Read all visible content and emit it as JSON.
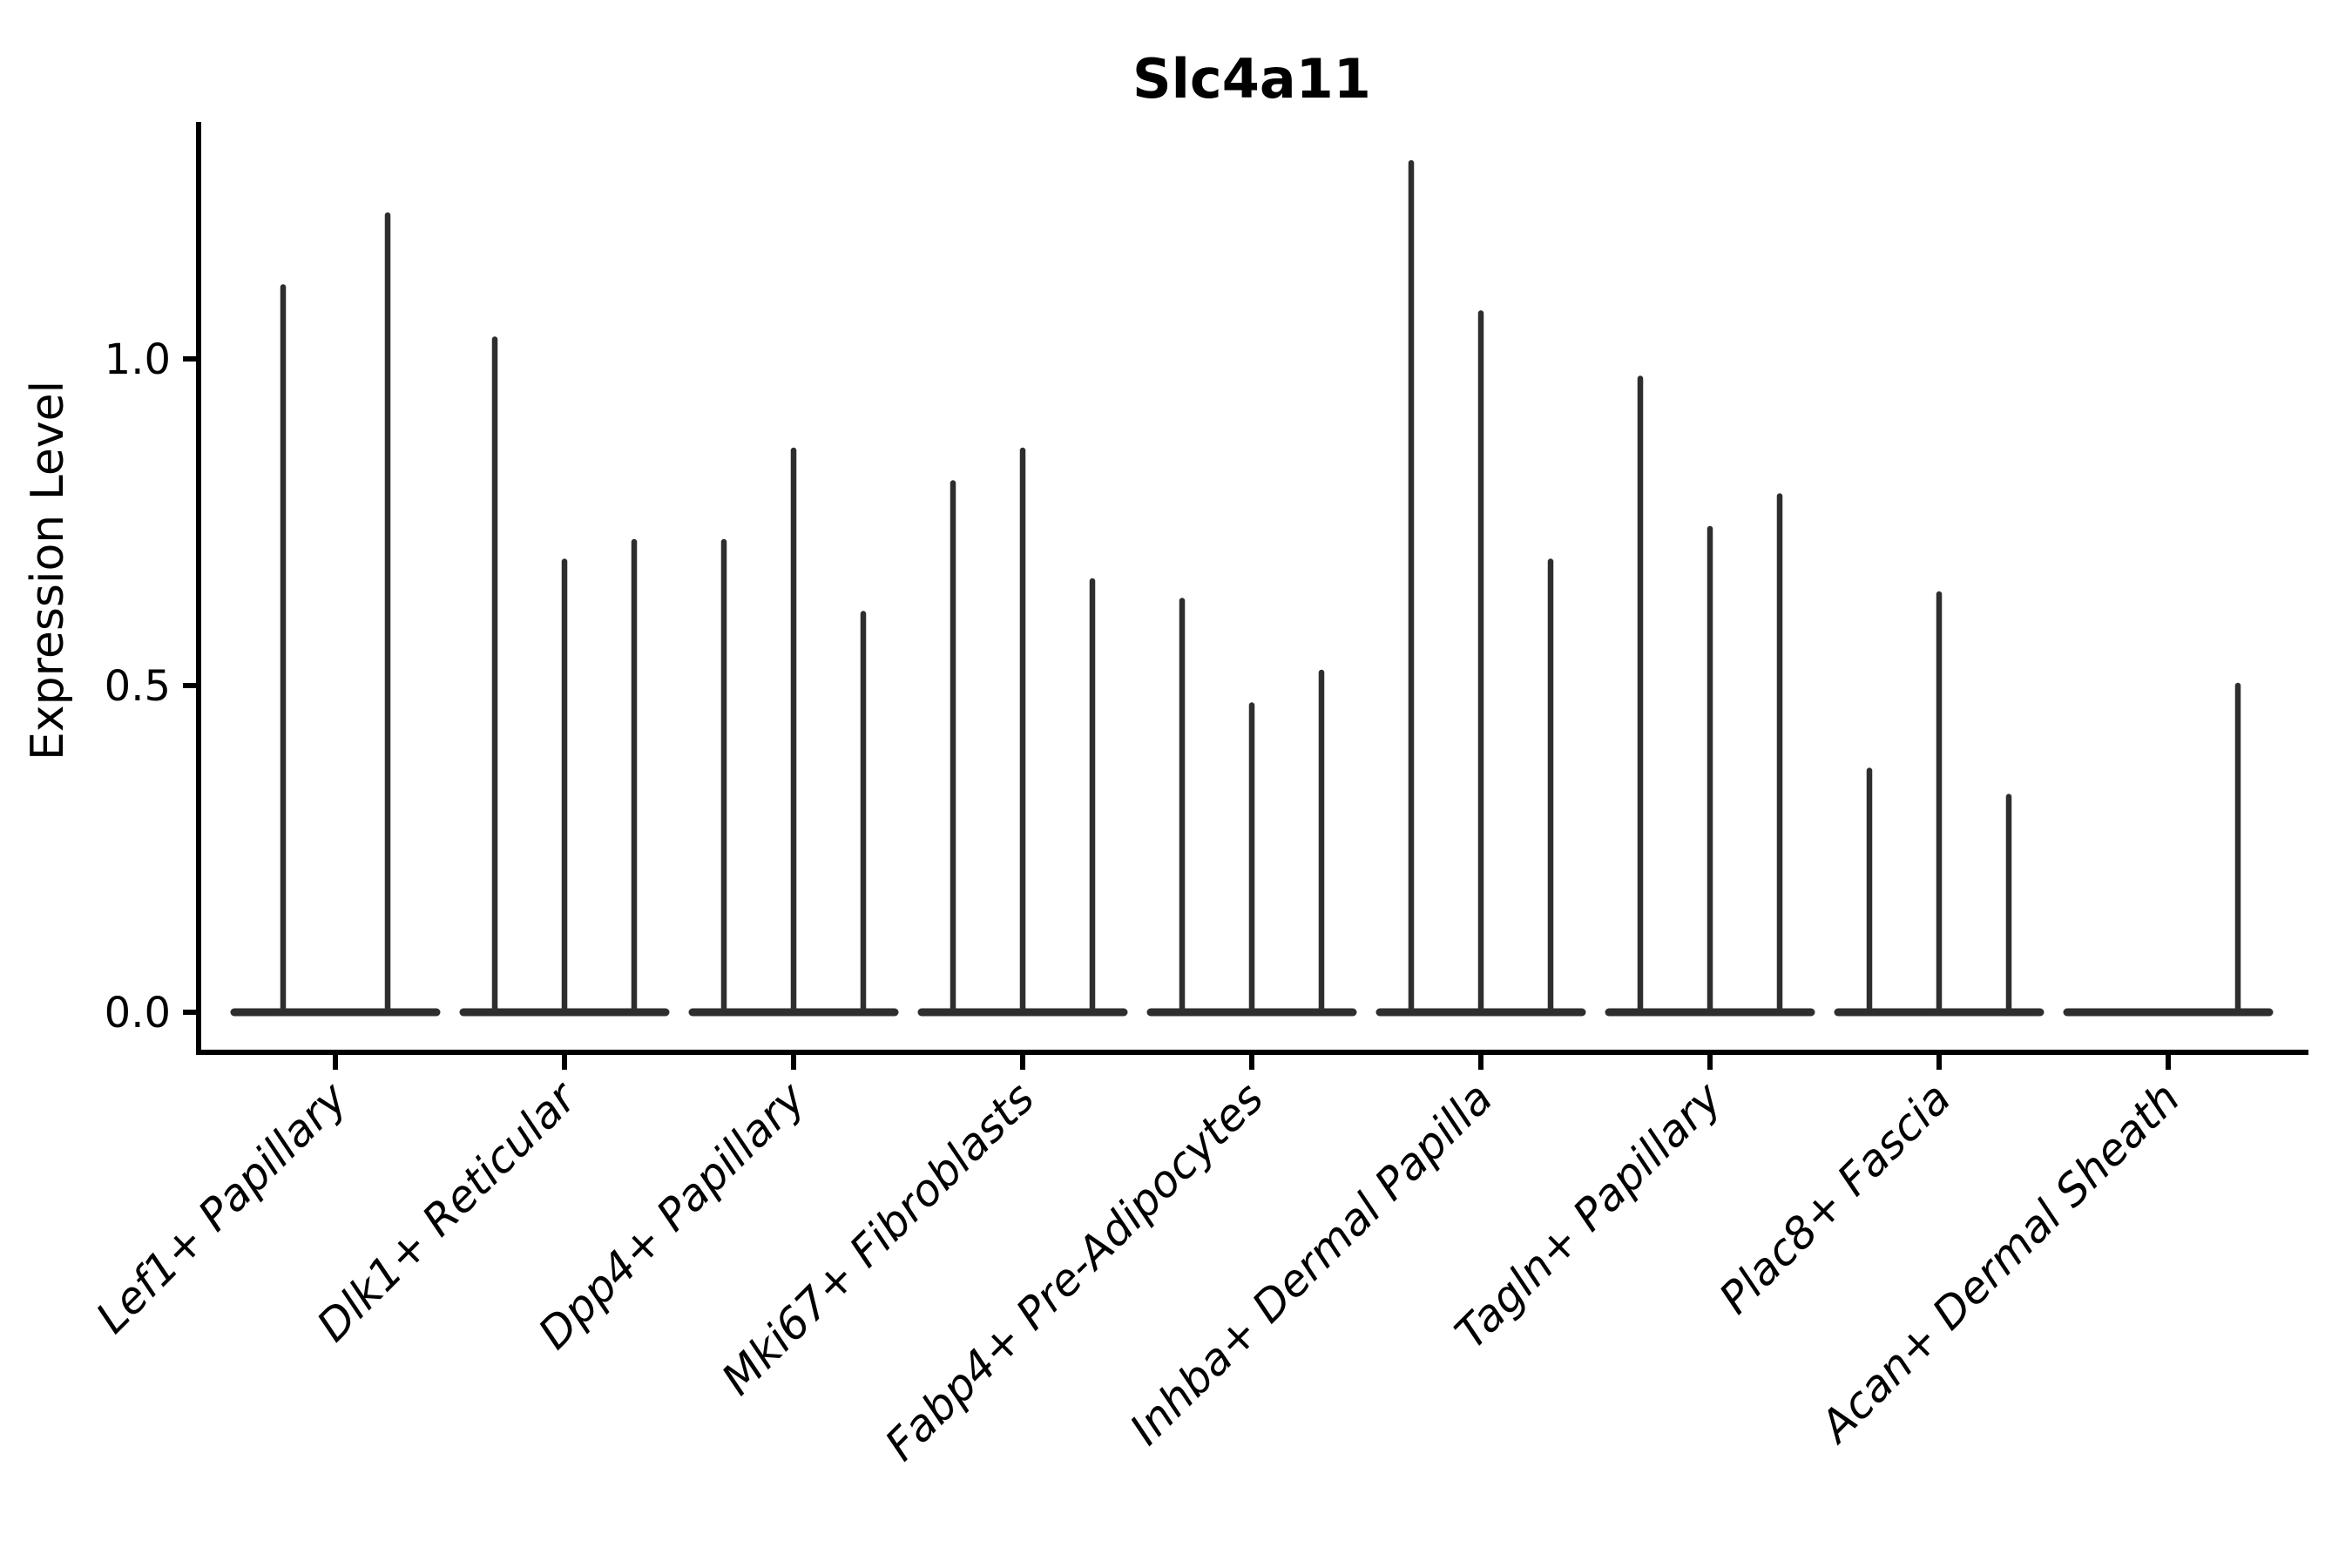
{
  "chart_data": {
    "type": "violin",
    "title": "Slc4a11",
    "xlabel": "",
    "ylabel": "Expression Level",
    "ylim": [
      -0.065,
      1.363
    ],
    "grid": false,
    "legend": "none",
    "yticks": [
      {
        "value": 0.0,
        "label": "0.0"
      },
      {
        "value": 0.5,
        "label": "0.5"
      },
      {
        "value": 1.0,
        "label": "1.0"
      }
    ],
    "categories": [
      "Lef1+ Papillary",
      "Dlk1+ Reticular",
      "Dpp4+ Papillary",
      "Mki67+ Fibroblasts",
      "Fabp4+ Pre-Adipocytes",
      "Inhba+ Dermal Papilla",
      "Tagln+ Papillary",
      "Plac8+ Fascia",
      "Acan+ Dermal Sheath"
    ],
    "groups": [
      {
        "category": "Lef1+ Papillary",
        "violin_max_values": [
          1.11,
          1.22
        ]
      },
      {
        "category": "Dlk1+ Reticular",
        "violin_max_values": [
          1.03,
          0.69,
          0.72
        ]
      },
      {
        "category": "Dpp4+ Papillary",
        "violin_max_values": [
          0.72,
          0.86,
          0.61
        ]
      },
      {
        "category": "Mki67+ Fibroblasts",
        "violin_max_values": [
          0.81,
          0.86,
          0.66
        ]
      },
      {
        "category": "Fabp4+ Pre-Adipocytes",
        "violin_max_values": [
          0.63,
          0.47,
          0.52
        ]
      },
      {
        "category": "Inhba+ Dermal Papilla",
        "violin_max_values": [
          1.3,
          1.07,
          0.69
        ]
      },
      {
        "category": "Tagln+ Papillary",
        "violin_max_values": [
          0.97,
          0.74,
          0.79
        ]
      },
      {
        "category": "Plac8+ Fascia",
        "violin_max_values": [
          0.37,
          0.64,
          0.33
        ]
      },
      {
        "category": "Acan+ Dermal Sheath",
        "violin_max_values": [
          0.0,
          0.0,
          0.5
        ]
      }
    ],
    "shape_note": "All violins are collapsed flat at expression 0 with a single thin density spike rising to each violin's maximum value",
    "colors": {
      "violin_stroke": "#2e2e2e",
      "axis": "#000000",
      "background": "#ffffff"
    }
  }
}
